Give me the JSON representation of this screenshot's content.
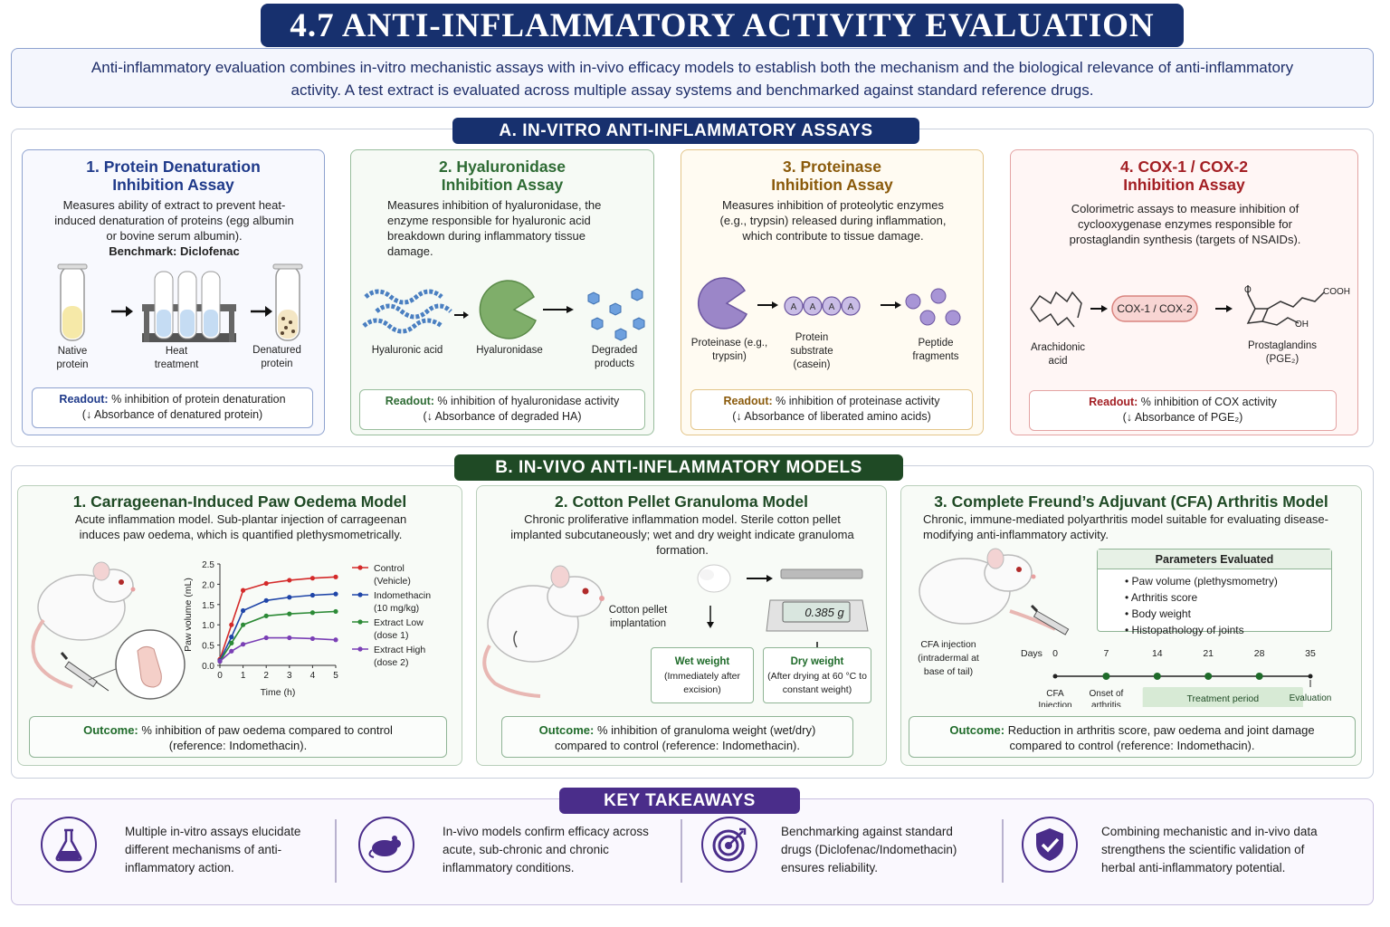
{
  "title": "4.7 ANTI-INFLAMMATORY ACTIVITY EVALUATION",
  "intro": "Anti-inflammatory evaluation combines in-vitro mechanistic assays with in-vivo efficacy models to establish both the mechanism and the biological relevance of anti-inflammatory activity. A test extract is evaluated across multiple assay systems and benchmarked against standard reference drugs.",
  "section_a": {
    "header": "A. IN-VITRO ANTI-INFLAMMATORY ASSAYS",
    "cards": [
      {
        "title_1": "1. Protein Denaturation",
        "title_2": "Inhibition Assay",
        "desc": "Measures ability of extract to prevent heat-induced denaturation of proteins (egg albumin or bovine serum albumin).",
        "benchmark": "Benchmark: Diclofenac",
        "labels": [
          "Native protein",
          "Heat treatment",
          "Denatured protein"
        ],
        "readout_key": "Readout:",
        "readout_1": "% inhibition of protein denaturation",
        "readout_2": "(↓ Absorbance of denatured protein)",
        "color": "#1f3a8a"
      },
      {
        "title_1": "2. Hyaluronidase",
        "title_2": "Inhibition Assay",
        "desc": "Measures inhibition of hyaluronidase, the enzyme responsible for hyaluronic acid breakdown during inflammatory tissue damage.",
        "labels": [
          "Hyaluronic acid",
          "Hyaluronidase",
          "Degraded products"
        ],
        "readout_key": "Readout:",
        "readout_1": "% inhibition of hyaluronidase activity",
        "readout_2": "(↓ Absorbance of degraded HA)",
        "color": "#2e6b34"
      },
      {
        "title_1": "3. Proteinase",
        "title_2": "Inhibition Assay",
        "desc": "Measures inhibition of proteolytic enzymes (e.g., trypsin) released during inflammation, which contribute to tissue damage.",
        "labels": [
          "Proteinase (e.g., trypsin)",
          "Protein substrate (casein)",
          "Peptide fragments"
        ],
        "substrate_letter": "A",
        "readout_key": "Readout:",
        "readout_1": "% inhibition of proteinase activity",
        "readout_2": "(↓ Absorbance of liberated amino acids)",
        "color": "#8a5a0b"
      },
      {
        "title_1": "4. COX-1 / COX-2",
        "title_2": "Inhibition Assay",
        "desc": "Colorimetric assays to measure inhibition of cyclooxygenase enzymes responsible for prostaglandin synthesis (targets of NSAIDs).",
        "labels": [
          "Arachidonic acid",
          "Prostaglandins (PGE₂)"
        ],
        "enzyme": "COX-1 / COX-2",
        "chem_cooh": "COOH",
        "chem_oh": "OH",
        "chem_o": "O",
        "readout_key": "Readout:",
        "readout_1": "% inhibition of COX activity",
        "readout_2": "(↓ Absorbance of PGE₂)",
        "color": "#a31f24"
      }
    ]
  },
  "section_b": {
    "header": "B. IN-VIVO ANTI-INFLAMMATORY MODELS",
    "model1": {
      "title": "1. Carrageenan-Induced Paw Oedema Model",
      "desc": "Acute inflammation model. Sub-plantar injection of carrageenan induces paw oedema, which is quantified plethysmometrically.",
      "outcome_key": "Outcome:",
      "outcome_1": "% inhibition of paw oedema compared to control",
      "outcome_2": "(reference: Indomethacin)."
    },
    "model2": {
      "title": "2. Cotton Pellet Granuloma Model",
      "desc": "Chronic proliferative inflammation model. Sterile cotton pellet implanted subcutaneously; wet and dry weight indicate granuloma formation.",
      "pellet_label": "Cotton pellet implantation",
      "scale_reading": "0.385 g",
      "wet_title": "Wet weight",
      "wet_desc": "(Immediately after excision)",
      "dry_title": "Dry weight",
      "dry_desc": "(After drying at 60 °C to constant weight)",
      "outcome_key": "Outcome:",
      "outcome_1": "% inhibition of granuloma weight (wet/dry)",
      "outcome_2": "compared to control (reference: Indomethacin)."
    },
    "model3": {
      "title": "3. Complete Freund’s Adjuvant (CFA) Arthritis Model",
      "desc": "Chronic, immune-mediated polyarthritis model suitable for evaluating disease-modifying anti-inflammatory activity.",
      "cfa_label": "CFA injection (intradermal at base of tail)",
      "params_title": "Parameters Evaluated",
      "params": [
        "Paw volume (plethysmometry)",
        "Arthritis score",
        "Body weight",
        "Histopathology of joints"
      ],
      "timeline_label": "Days",
      "days": [
        0,
        7,
        14,
        21,
        28,
        35
      ],
      "events": [
        "CFA Injection",
        "Onset of arthritis"
      ],
      "treatment": "Treatment period",
      "evaluation": "Evaluation",
      "outcome_key": "Outcome:",
      "outcome_1": "Reduction in arthritis score, paw oedema and joint damage",
      "outcome_2": "compared to control (reference: Indomethacin)."
    }
  },
  "chart_data": {
    "type": "line",
    "x": [
      0,
      0.5,
      1,
      2,
      3,
      4,
      5
    ],
    "xlabel": "Time (h)",
    "ylabel": "Paw volume (mL)",
    "ylim": [
      0,
      2.5
    ],
    "yticks": [
      0.0,
      0.5,
      1.0,
      1.5,
      2.0,
      2.5
    ],
    "xticks": [
      0,
      1,
      2,
      3,
      4,
      5
    ],
    "series": [
      {
        "name": "Control (Vehicle)",
        "color": "#d42a2a",
        "values": [
          0.15,
          1.0,
          1.85,
          2.02,
          2.1,
          2.15,
          2.18
        ]
      },
      {
        "name": "Indomethacin (10 mg/kg)",
        "color": "#1f45a8",
        "values": [
          0.12,
          0.7,
          1.35,
          1.6,
          1.68,
          1.73,
          1.76
        ]
      },
      {
        "name": "Extract Low (dose 1)",
        "color": "#2c8a36",
        "values": [
          0.1,
          0.55,
          1.0,
          1.22,
          1.27,
          1.3,
          1.33
        ]
      },
      {
        "name": "Extract High (dose 2)",
        "color": "#7a3fb5",
        "values": [
          0.1,
          0.35,
          0.52,
          0.68,
          0.68,
          0.66,
          0.63
        ]
      }
    ],
    "legend": "right"
  },
  "takeaways": {
    "header": "KEY TAKEAWAYS",
    "items": [
      {
        "text": "Multiple in-vitro assays elucidate different mechanisms of anti-inflammatory action.",
        "icon": "flask-icon"
      },
      {
        "text": "In-vivo models confirm efficacy across acute, sub-chronic and chronic inflammatory conditions.",
        "icon": "rat-icon"
      },
      {
        "text": "Benchmarking against standard drugs (Diclofenac/Indomethacin) ensures reliability.",
        "icon": "target-icon"
      },
      {
        "text": "Combining mechanistic and in-vivo data strengthens the scientific validation of herbal anti-inflammatory potential.",
        "icon": "shield-check-icon"
      }
    ]
  },
  "colors": {
    "navy": "#17306e",
    "green_header": "#1f4a25",
    "purple": "#4a2d8a"
  }
}
